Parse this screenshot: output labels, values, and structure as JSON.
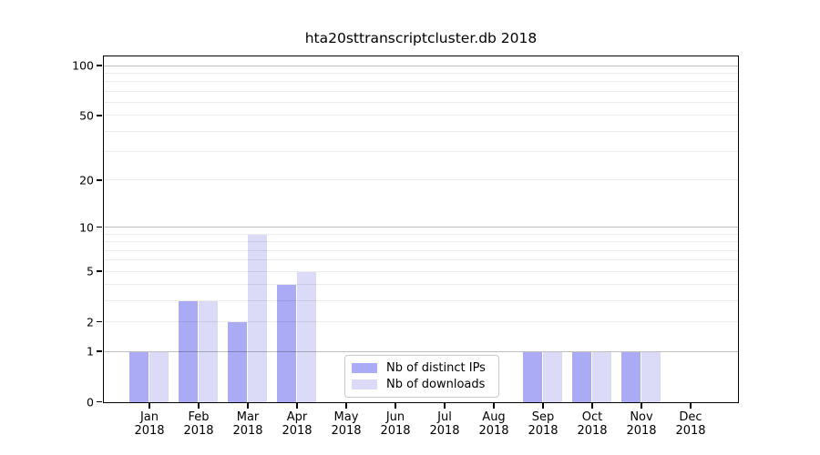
{
  "chart_data": {
    "type": "bar",
    "title": "hta20sttranscriptcluster.db 2018",
    "categories": [
      "Jan",
      "Feb",
      "Mar",
      "Apr",
      "May",
      "Jun",
      "Jul",
      "Aug",
      "Sep",
      "Oct",
      "Nov",
      "Dec"
    ],
    "year_label": "2018",
    "series": [
      {
        "name": "Nb of distinct IPs",
        "color": "#ababf5",
        "values": [
          1,
          3,
          2,
          4,
          0,
          0,
          0,
          0,
          1,
          1,
          1,
          0
        ]
      },
      {
        "name": "Nb of downloads",
        "color": "#dbdbf8",
        "values": [
          1,
          3,
          9,
          5,
          0,
          0,
          0,
          0,
          1,
          1,
          1,
          0
        ]
      }
    ],
    "yscale": "log1p",
    "ylim": [
      0,
      113
    ],
    "ytick_labels": [
      "100",
      "50",
      "20",
      "10",
      "5",
      "2",
      "1",
      "0"
    ],
    "ytick_values": [
      100,
      50,
      20,
      10,
      5,
      2,
      1,
      0
    ],
    "grid_major_values": [
      1,
      10,
      100
    ],
    "grid_minor_values": [
      2,
      3,
      4,
      5,
      6,
      7,
      8,
      9,
      20,
      30,
      40,
      50,
      60,
      70,
      80,
      90
    ],
    "legend_position": "bottom-center",
    "colors": {
      "grid_major": "rgba(0,0,0,0.25)",
      "grid_minor": "rgba(0,0,0,0.08)",
      "axis": "#000000",
      "background": "#ffffff"
    }
  }
}
